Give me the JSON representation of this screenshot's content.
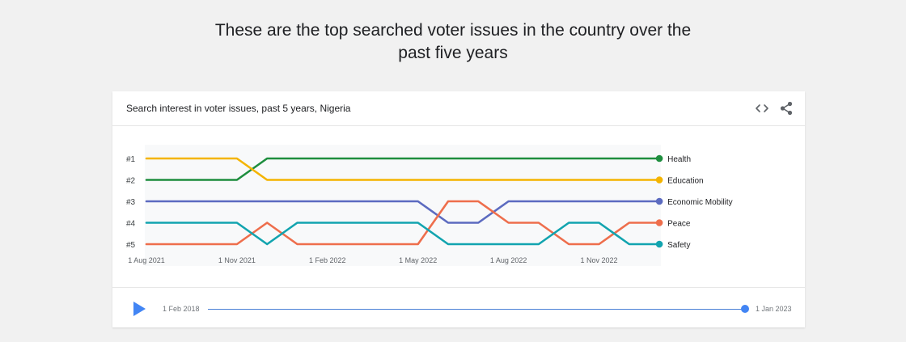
{
  "headline": {
    "line1": "These are the top searched voter issues in the country over the",
    "line2": "past five years"
  },
  "card": {
    "title": "Search interest in voter issues, past 5 years, Nigeria",
    "icons": {
      "embed": "embed-code-icon",
      "share": "share-icon"
    }
  },
  "timeline": {
    "start_label": "1 Feb 2018",
    "end_label": "1 Jan 2023",
    "progress": 1.0,
    "icons": {
      "play": "play-icon"
    },
    "colors": {
      "track": "#4a80d6",
      "handle": "#4285f4",
      "play": "#4285f4"
    }
  },
  "chart_data": {
    "type": "line",
    "chart_kind": "bump / rank chart",
    "x": [
      "2021-08-01",
      "2021-09-01",
      "2021-10-01",
      "2021-11-01",
      "2021-12-01",
      "2022-01-01",
      "2022-02-01",
      "2022-03-01",
      "2022-04-01",
      "2022-05-01",
      "2022-06-01",
      "2022-07-01",
      "2022-08-01",
      "2022-09-01",
      "2022-10-01",
      "2022-11-01",
      "2022-12-01",
      "2023-01-01"
    ],
    "x_tick_labels": [
      "1 Aug 2021",
      "1 Nov 2021",
      "1 Feb 2022",
      "1 May 2022",
      "1 Aug 2022",
      "1 Nov 2022"
    ],
    "y_tick_labels": [
      "#1",
      "#2",
      "#3",
      "#4",
      "#5"
    ],
    "y_range": [
      1,
      5
    ],
    "y_inverted": true,
    "grid": false,
    "legend_placement": "right, at line ends",
    "series": [
      {
        "name": "Health",
        "color": "#1e8e3e",
        "values": [
          2,
          2,
          2,
          2,
          1,
          1,
          1,
          1,
          1,
          1,
          1,
          1,
          1,
          1,
          1,
          1,
          1,
          1
        ]
      },
      {
        "name": "Education",
        "color": "#f4b400",
        "values": [
          1,
          1,
          1,
          1,
          2,
          2,
          2,
          2,
          2,
          2,
          2,
          2,
          2,
          2,
          2,
          2,
          2,
          2
        ]
      },
      {
        "name": "Economic Mobility",
        "color": "#5c6bc0",
        "values": [
          3,
          3,
          3,
          3,
          3,
          3,
          3,
          3,
          3,
          3,
          4,
          4,
          3,
          3,
          3,
          3,
          3,
          3
        ]
      },
      {
        "name": "Peace",
        "color": "#ee6e4c",
        "values": [
          5,
          5,
          5,
          5,
          4,
          5,
          5,
          5,
          5,
          5,
          3,
          3,
          4,
          4,
          5,
          5,
          4,
          4
        ]
      },
      {
        "name": "Safety",
        "color": "#12a4af",
        "values": [
          4,
          4,
          4,
          4,
          5,
          4,
          4,
          4,
          4,
          4,
          5,
          5,
          5,
          5,
          4,
          4,
          5,
          5
        ]
      }
    ]
  }
}
